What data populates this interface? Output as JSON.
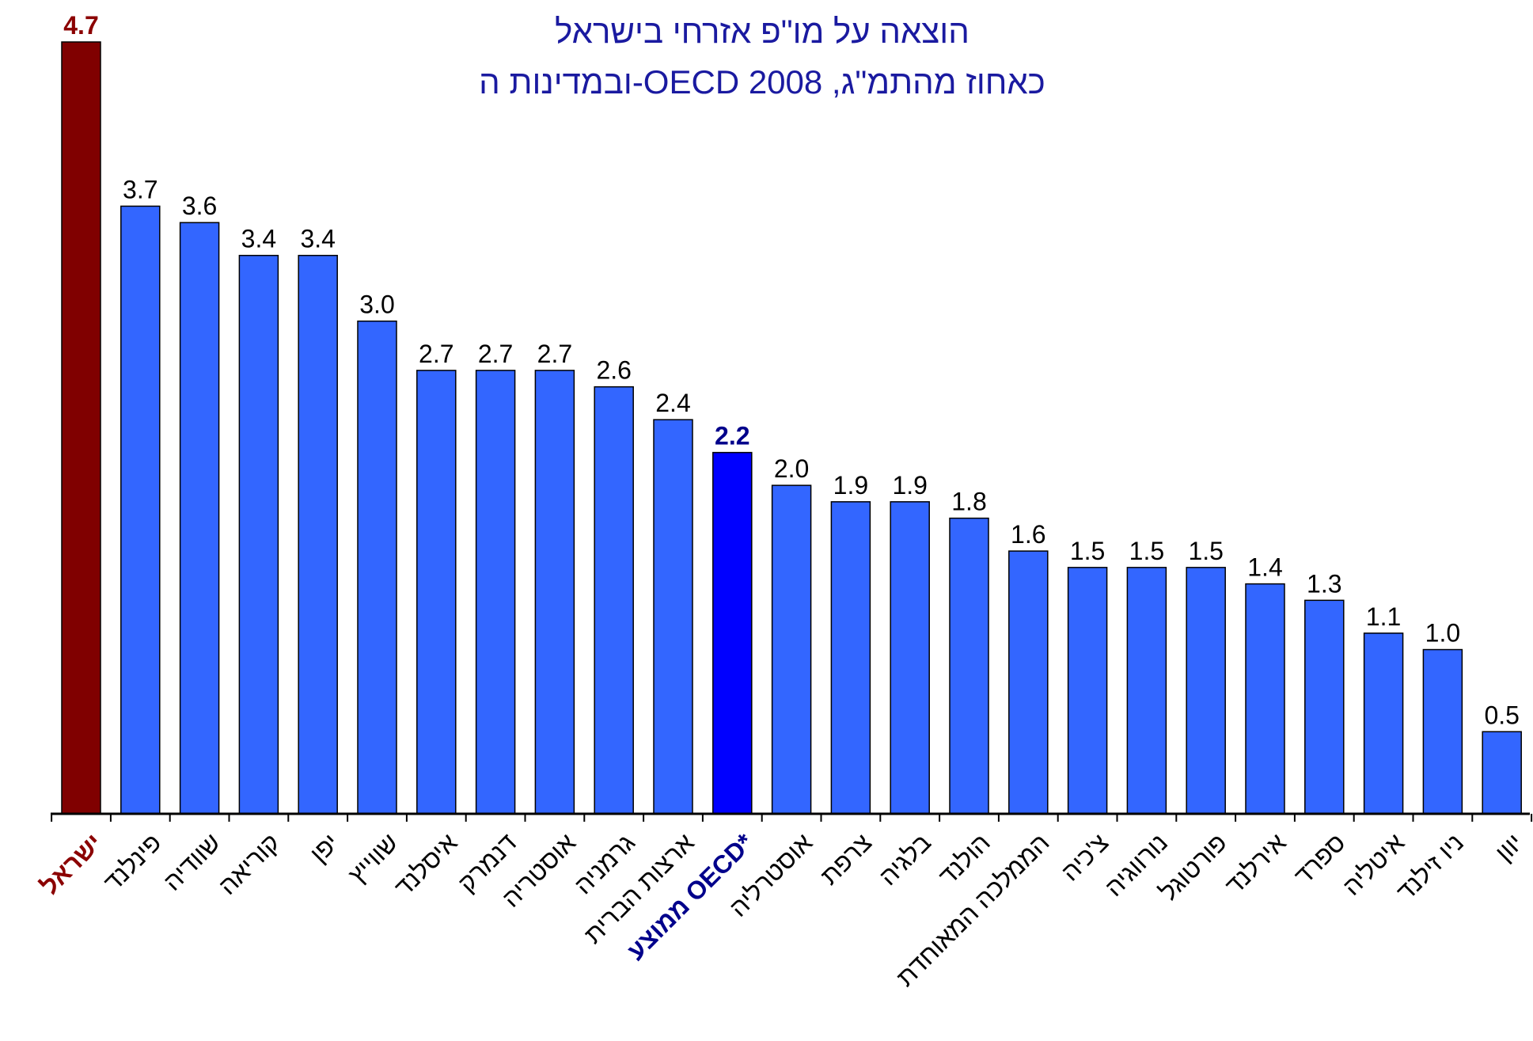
{
  "chart_data": {
    "type": "bar",
    "title": [
      "הוצאה על מו\"פ אזרחי בישראל",
      "ובמדינות ה-OECD כאחוז מהתמ\"ג, 2008"
    ],
    "categories": [
      "ישראל",
      "פינלנד",
      "שוודיה",
      "קוריאה",
      "יפן",
      "שווייץ",
      "איסלנד",
      "דנמרק",
      "אוסטריה",
      "גרמניה",
      "ארצות הברית",
      "ממוצע OECD*",
      "אוסטרליה",
      "צרפת",
      "בלגיה",
      "הולנד",
      "הממלכה המאוחדת",
      "צ'כיה",
      "נורווגיה",
      "פורטוגל",
      "אירלנד",
      "ספרד",
      "איטליה",
      "ניו זילנד",
      "יוון"
    ],
    "values": [
      4.7,
      3.7,
      3.6,
      3.4,
      3.4,
      3.0,
      2.7,
      2.7,
      2.7,
      2.6,
      2.4,
      2.2,
      2.0,
      1.9,
      1.9,
      1.8,
      1.6,
      1.5,
      1.5,
      1.5,
      1.4,
      1.3,
      1.1,
      1.0,
      0.5
    ],
    "value_labels": [
      "4.7",
      "3.7",
      "3.6",
      "3.4",
      "3.4",
      "3.0",
      "2.7",
      "2.7",
      "2.7",
      "2.6",
      "2.4",
      "2.2",
      "2.0",
      "1.9",
      "1.9",
      "1.8",
      "1.6",
      "1.5",
      "1.5",
      "1.5",
      "1.4",
      "1.3",
      "1.1",
      "1.0",
      "0.5"
    ],
    "colors": [
      "#800000",
      "#3366ff",
      "#3366ff",
      "#3366ff",
      "#3366ff",
      "#3366ff",
      "#3366ff",
      "#3366ff",
      "#3366ff",
      "#3366ff",
      "#3366ff",
      "#0000ff",
      "#3366ff",
      "#3366ff",
      "#3366ff",
      "#3366ff",
      "#3366ff",
      "#3366ff",
      "#3366ff",
      "#3366ff",
      "#3366ff",
      "#3366ff",
      "#3366ff",
      "#3366ff",
      "#3366ff"
    ],
    "label_colors": [
      "#8b0000",
      "#000000",
      "#000000",
      "#000000",
      "#000000",
      "#000000",
      "#000000",
      "#000000",
      "#000000",
      "#000000",
      "#000000",
      "#00008b",
      "#000000",
      "#000000",
      "#000000",
      "#000000",
      "#000000",
      "#000000",
      "#000000",
      "#000000",
      "#000000",
      "#000000",
      "#000000",
      "#000000",
      "#000000"
    ],
    "ylim": [
      0,
      4.7
    ]
  }
}
